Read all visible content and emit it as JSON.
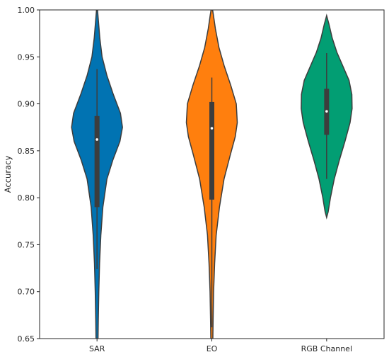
{
  "chart_data": {
    "type": "violin",
    "title": "",
    "xlabel": "",
    "ylabel": "Accuracy",
    "ylim": [
      0.65,
      1.0
    ],
    "yticks": [
      "0.65",
      "0.70",
      "0.75",
      "0.80",
      "0.85",
      "0.90",
      "0.95",
      "1.00"
    ],
    "grid": false,
    "legend": "none",
    "categories": [
      "SAR",
      "EO",
      "RGB Channel"
    ],
    "series": [
      {
        "category": "SAR",
        "color": "#0173b2",
        "min": 0.724,
        "q1": 0.79,
        "median": 0.862,
        "q3": 0.887,
        "max": 0.937,
        "density_extent": [
          0.65,
          1.0
        ],
        "density": [
          [
            0.65,
            0.04
          ],
          [
            0.67,
            0.05
          ],
          [
            0.7,
            0.07
          ],
          [
            0.73,
            0.1
          ],
          [
            0.76,
            0.15
          ],
          [
            0.79,
            0.23
          ],
          [
            0.82,
            0.39
          ],
          [
            0.84,
            0.62
          ],
          [
            0.86,
            0.9
          ],
          [
            0.875,
            1.0
          ],
          [
            0.89,
            0.92
          ],
          [
            0.91,
            0.64
          ],
          [
            0.93,
            0.39
          ],
          [
            0.95,
            0.2
          ],
          [
            0.97,
            0.11
          ],
          [
            0.99,
            0.05
          ],
          [
            1.0,
            0.02
          ]
        ]
      },
      {
        "category": "EO",
        "color": "#ff7f0e",
        "min": 0.662,
        "q1": 0.798,
        "median": 0.874,
        "q3": 0.902,
        "max": 0.928,
        "density_extent": [
          0.65,
          1.0
        ],
        "density": [
          [
            0.65,
            0.04
          ],
          [
            0.67,
            0.05
          ],
          [
            0.7,
            0.07
          ],
          [
            0.73,
            0.11
          ],
          [
            0.76,
            0.17
          ],
          [
            0.79,
            0.3
          ],
          [
            0.82,
            0.48
          ],
          [
            0.845,
            0.72
          ],
          [
            0.865,
            0.92
          ],
          [
            0.88,
            1.0
          ],
          [
            0.9,
            0.96
          ],
          [
            0.92,
            0.74
          ],
          [
            0.94,
            0.49
          ],
          [
            0.96,
            0.28
          ],
          [
            0.98,
            0.14
          ],
          [
            0.995,
            0.06
          ],
          [
            1.0,
            0.03
          ]
        ]
      },
      {
        "category": "RGB Channel",
        "color": "#029e73",
        "min": 0.82,
        "q1": 0.867,
        "median": 0.892,
        "q3": 0.916,
        "max": 0.954,
        "density_extent": [
          0.779,
          0.994
        ],
        "density": [
          [
            0.779,
            0.0
          ],
          [
            0.785,
            0.06
          ],
          [
            0.8,
            0.15
          ],
          [
            0.82,
            0.3
          ],
          [
            0.84,
            0.5
          ],
          [
            0.86,
            0.72
          ],
          [
            0.88,
            0.92
          ],
          [
            0.895,
            1.0
          ],
          [
            0.91,
            0.99
          ],
          [
            0.925,
            0.88
          ],
          [
            0.94,
            0.64
          ],
          [
            0.955,
            0.4
          ],
          [
            0.97,
            0.22
          ],
          [
            0.985,
            0.09
          ],
          [
            0.994,
            0.0
          ]
        ]
      }
    ]
  }
}
